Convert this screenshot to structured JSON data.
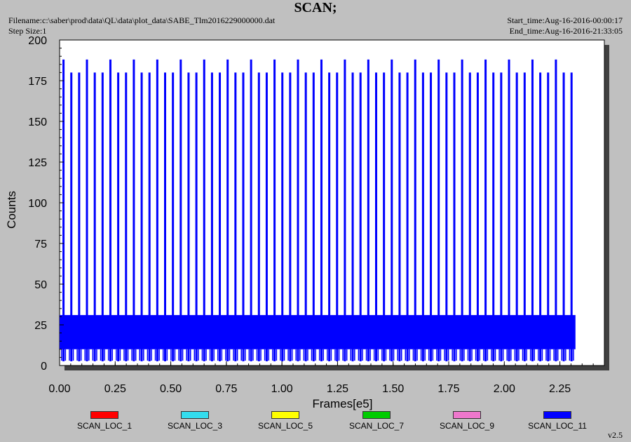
{
  "header": {
    "title": "SCAN;",
    "filename": "Filename:c:\\saber\\prod\\data\\QL\\data\\plot_data\\SABE_Tlm2016229000000.dat",
    "step_size": "Step Size:1",
    "start_time": "Start_time:Aug-16-2016-00:00:17",
    "end_time": "End_time:Aug-16-2016-21:33:05"
  },
  "footer": {
    "version": "v2.5"
  },
  "chart_data": {
    "type": "line",
    "title": "SCAN;",
    "xlabel": "Frames[e5]",
    "ylabel": "Counts",
    "xlim": [
      0.0,
      2.45
    ],
    "ylim": [
      0,
      200
    ],
    "x_ticks": [
      "0.00",
      "0.25",
      "0.50",
      "0.75",
      "1.00",
      "1.25",
      "1.50",
      "1.75",
      "2.00",
      "2.25"
    ],
    "y_ticks": [
      "0",
      "25",
      "50",
      "75",
      "100",
      "125",
      "150",
      "175",
      "200"
    ],
    "x_range_data": [
      0.0,
      2.32
    ],
    "grid": false,
    "legend_position": "bottom",
    "series": [
      {
        "name": "SCAN_LOC_1",
        "color": "#ff0000",
        "values": []
      },
      {
        "name": "SCAN_LOC_3",
        "color": "#33ddee",
        "values": []
      },
      {
        "name": "SCAN_LOC_5",
        "color": "#ffff00",
        "values": []
      },
      {
        "name": "SCAN_LOC_7",
        "color": "#00cc00",
        "values": []
      },
      {
        "name": "SCAN_LOC_9",
        "color": "#ee77cc",
        "values": []
      },
      {
        "name": "SCAN_LOC_11",
        "color": "#0000ff",
        "band_range": [
          10,
          31
        ],
        "spike_heights": [
          180,
          188
        ],
        "spike_count": 66
      }
    ]
  }
}
